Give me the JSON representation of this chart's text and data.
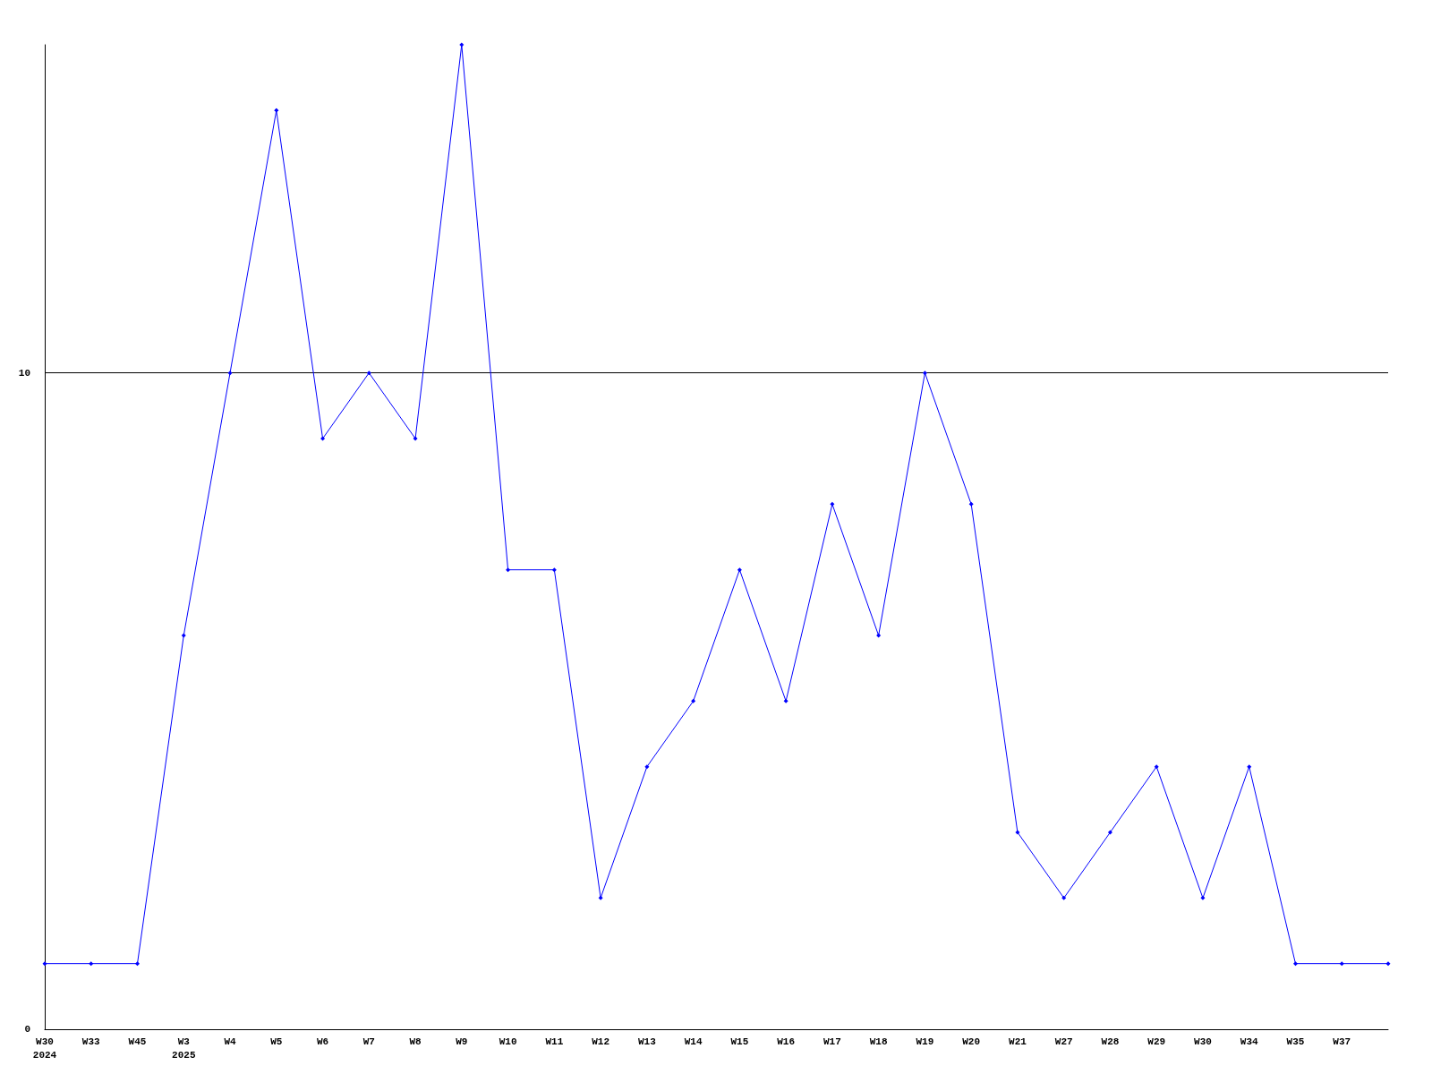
{
  "chart_data": {
    "type": "line",
    "categories": [
      "W30\n2024",
      "W33",
      "W45",
      "W3\n2025",
      "W4",
      "W5",
      "W6",
      "W7",
      "W8",
      "W9",
      "W10",
      "W11",
      "W12",
      "W13",
      "W14",
      "W15",
      "W16",
      "W17",
      "W18",
      "W19",
      "W20",
      "W21",
      "W27",
      "W28",
      "W29",
      "W30",
      "W34",
      "W35",
      "W37",
      null
    ],
    "series": [
      {
        "color": "#0000ff",
        "values": [
          1,
          1,
          1,
          6,
          10,
          14,
          9,
          10,
          9,
          15,
          7,
          7,
          2,
          4,
          5,
          7,
          5,
          8,
          6,
          10,
          8,
          3,
          2,
          3,
          4,
          2,
          4,
          1,
          1,
          1
        ]
      }
    ],
    "ylim": [
      0,
      15
    ],
    "yticks": [
      0,
      10
    ],
    "grid": "y",
    "marker": "diamond",
    "line_style": "solid"
  }
}
